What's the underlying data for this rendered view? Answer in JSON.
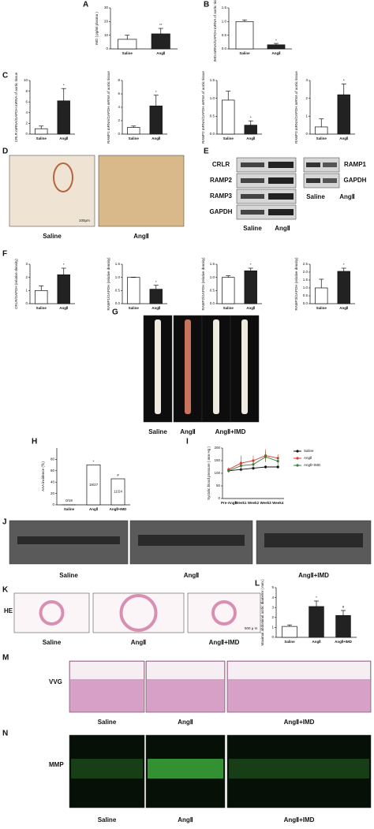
{
  "panel_letters": [
    "A",
    "B",
    "C",
    "D",
    "E",
    "F",
    "G",
    "H",
    "I",
    "J",
    "K",
    "L",
    "M",
    "N"
  ],
  "chart_data": [
    {
      "type": "bar",
      "ylabel": "IMD ( pg/ml plasma )",
      "categories": [
        "Saline",
        "AngⅡ"
      ],
      "values": [
        7,
        11
      ],
      "errors": [
        3,
        4
      ],
      "marks": [
        null,
        "**"
      ],
      "colors": [
        "#ffffff",
        "#222222"
      ],
      "ylim": [
        0,
        30
      ],
      "yticks": [
        0,
        10,
        20,
        30
      ]
    },
    {
      "type": "bar",
      "ylabel": "IMD mRNA/GAPDH mRNA of aortic tissue",
      "categories": [
        "Saline",
        "AngⅡ"
      ],
      "values": [
        1.0,
        0.15
      ],
      "errors": [
        0.06,
        0.05
      ],
      "marks": [
        null,
        "*"
      ],
      "colors": [
        "#ffffff",
        "#222222"
      ],
      "ylim": [
        0,
        1.5
      ],
      "yticks": [
        {
          "value": 0,
          "label": "0.0"
        },
        0.5,
        {
          "value": 1,
          "label": "1.0"
        },
        1.5
      ]
    },
    {
      "type": "bar",
      "ylabel": "CRLR mRNA/GAPDH mRNA of aortic tissue",
      "categories": [
        "Saline",
        "AngⅡ"
      ],
      "values": [
        1,
        6.2
      ],
      "errors": [
        0.5,
        2.3
      ],
      "marks": [
        null,
        "*"
      ],
      "colors": [
        "#ffffff",
        "#222222"
      ],
      "ylim": [
        0,
        10
      ],
      "yticks": [
        0,
        2,
        4,
        6,
        8,
        10
      ]
    },
    {
      "type": "bar",
      "ylabel": "RAMP1 mRNA/GAPDH mRNA of aortic tissue",
      "categories": [
        "Saline",
        "AngⅡ"
      ],
      "values": [
        1,
        4.2
      ],
      "errors": [
        0.2,
        1.6
      ],
      "marks": [
        null,
        "*"
      ],
      "colors": [
        "#ffffff",
        "#222222"
      ],
      "ylim": [
        0,
        8
      ],
      "yticks": [
        0,
        2,
        4,
        6,
        8
      ]
    },
    {
      "type": "bar",
      "ylabel": "RAMP2 mRNA/GAPDH mRNA of aortic tissue",
      "categories": [
        "Saline",
        "AngⅡ"
      ],
      "values": [
        0.95,
        0.25
      ],
      "errors": [
        0.25,
        0.12
      ],
      "marks": [
        null,
        "*"
      ],
      "colors": [
        "#ffffff",
        "#222222"
      ],
      "ylim": [
        0,
        1.5
      ],
      "yticks": [
        {
          "value": 0,
          "label": "0.0"
        },
        0.5,
        {
          "value": 1,
          "label": "1.0"
        },
        1.5
      ]
    },
    {
      "type": "bar",
      "ylabel": "RAMP3 mRNA/GAPDH mRNA of aortic tissue",
      "categories": [
        "Saline",
        "AngⅡ"
      ],
      "values": [
        0.4,
        2.2
      ],
      "errors": [
        0.45,
        0.6
      ],
      "marks": [
        null,
        "*"
      ],
      "colors": [
        "#ffffff",
        "#222222"
      ],
      "ylim": [
        0,
        3
      ],
      "yticks": [
        0,
        1,
        2,
        3
      ]
    },
    {
      "type": "bar",
      "ylabel": "CRLR/GAPDH (relative density)",
      "categories": [
        "Saline",
        "AngⅡ"
      ],
      "values": [
        1,
        2.2
      ],
      "errors": [
        0.35,
        0.5
      ],
      "marks": [
        null,
        "*"
      ],
      "colors": [
        "#ffffff",
        "#222222"
      ],
      "ylim": [
        0,
        3
      ],
      "yticks": [
        0,
        1,
        2,
        3
      ]
    },
    {
      "type": "bar",
      "ylabel": "RAMP1/GAPDH (relative density)",
      "categories": [
        "Saline",
        "AngⅡ"
      ],
      "values": [
        1,
        0.55
      ],
      "errors": [
        0.01,
        0.15
      ],
      "marks": [
        null,
        "*"
      ],
      "colors": [
        "#ffffff",
        "#222222"
      ],
      "ylim": [
        0,
        1.5
      ],
      "yticks": [
        {
          "value": 0,
          "label": "0.0"
        },
        0.5,
        {
          "value": 1,
          "label": "1.0"
        },
        1.5
      ]
    },
    {
      "type": "bar",
      "ylabel": "RAMP2/GAPDH (relative density)",
      "categories": [
        "Saline",
        "AngⅡ"
      ],
      "values": [
        1,
        1.25
      ],
      "errors": [
        0.06,
        0.1
      ],
      "marks": [
        null,
        "*"
      ],
      "colors": [
        "#ffffff",
        "#222222"
      ],
      "ylim": [
        0,
        1.5
      ],
      "yticks": [
        {
          "value": 0,
          "label": "0.0"
        },
        0.5,
        {
          "value": 1,
          "label": "1.0"
        },
        1.5
      ]
    },
    {
      "type": "bar",
      "ylabel": "RAMP3/GAPDH (relative density)",
      "categories": [
        "Saline",
        "AngⅡ"
      ],
      "values": [
        1,
        2.05
      ],
      "errors": [
        0.55,
        0.2
      ],
      "marks": [
        null,
        "*"
      ],
      "colors": [
        "#ffffff",
        "#222222"
      ],
      "ylim": [
        0,
        2.5
      ],
      "yticks": [
        {
          "value": 0,
          "label": "0.0"
        },
        0.5,
        {
          "value": 1,
          "label": "1.0"
        },
        1.5,
        {
          "value": 2,
          "label": "2.0"
        },
        2.5
      ]
    },
    {
      "type": "bar",
      "ylabel": "AAA incidence (％)",
      "categories": [
        "Saline",
        "AngⅡ",
        "AngⅡ+IMD"
      ],
      "values": [
        0,
        70.4,
        45.8
      ],
      "value_labels": [
        "0/19",
        "19/27",
        "11/24"
      ],
      "errors": [
        null,
        null,
        null
      ],
      "marks": [
        null,
        "*",
        "#"
      ],
      "colors": [
        "#ffffff",
        "#ffffff",
        "#ffffff"
      ],
      "ylim": [
        0,
        100
      ],
      "yticks": [
        0,
        20,
        40,
        60,
        80
      ]
    },
    {
      "type": "line",
      "ylabel": "Systolic blood pressure ( mm Hg )",
      "categories": [
        "Pre-AngⅡ",
        "Week1",
        "Week2",
        "Week3",
        "Week4"
      ],
      "ylim": [
        0,
        200
      ],
      "yticks": [
        0,
        50,
        100,
        150,
        200
      ],
      "series": [
        {
          "name": "Saline",
          "color": "#111111",
          "values": [
            110,
            115,
            120,
            125,
            125
          ],
          "errors": [
            5,
            6,
            6,
            6,
            6
          ]
        },
        {
          "name": "AngⅡ",
          "color": "#d93a2b",
          "values": [
            115,
            140,
            150,
            170,
            160
          ],
          "errors": [
            8,
            30,
            20,
            25,
            15
          ]
        },
        {
          "name": "AngⅡ+IMD",
          "color": "#3d7a3d",
          "values": [
            110,
            130,
            135,
            165,
            148
          ],
          "errors": [
            8,
            20,
            15,
            20,
            18
          ]
        }
      ]
    },
    {
      "type": "bar",
      "ylabel": "Maximal abdominal aortic diameter ( mm )",
      "categories": [
        "Saline",
        "AngⅡ",
        "AngⅡ+IMD"
      ],
      "values": [
        1.1,
        3.1,
        2.2
      ],
      "errors": [
        0.15,
        0.55,
        0.5
      ],
      "marks": [
        null,
        "*",
        "#"
      ],
      "colors": [
        "#ffffff",
        "#222222",
        "#222222"
      ],
      "ylim": [
        0,
        5
      ],
      "yticks": [
        0,
        1,
        2,
        3,
        4,
        5
      ]
    }
  ],
  "images": {
    "D": {
      "labels": [
        "Saline",
        "AngⅡ"
      ],
      "scale": "100μm"
    },
    "E": {
      "left_rows": [
        "CRLR",
        "RAMP2",
        "RAMP3",
        "GAPDH"
      ],
      "right_rows": [
        "RAMP1",
        "GAPDH"
      ],
      "labels": [
        "Saline",
        "AngⅡ"
      ]
    },
    "G": {
      "labels": [
        "Saline",
        "AngⅡ",
        "AngⅡ+IMD"
      ]
    },
    "J": {
      "labels": [
        "Saline",
        "AngⅡ",
        "AngⅡ+IMD"
      ]
    },
    "K": {
      "tag": "HE",
      "labels": [
        "Saline",
        "AngⅡ",
        "AngⅡ+IMD"
      ],
      "scale": "500 μ m"
    },
    "M": {
      "tag": "VVG",
      "labels": [
        "Saline",
        "AngⅡ",
        "AngⅡ+IMD"
      ]
    },
    "N": {
      "tag": "MMP",
      "labels": [
        "Saline",
        "AngⅡ",
        "AngⅡ+IMD"
      ]
    }
  }
}
